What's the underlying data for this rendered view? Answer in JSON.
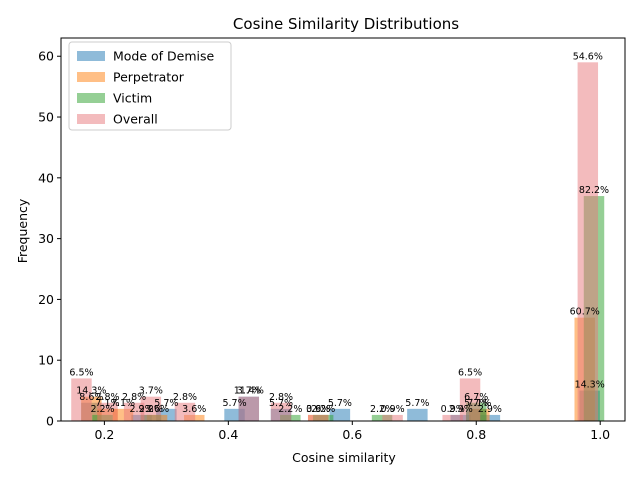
{
  "chart_data": {
    "type": "bar",
    "title": "Cosine Similarity Distributions",
    "xlabel": "Cosine similarity",
    "ylabel": "Frequency",
    "xlim": [
      0.13,
      1.04
    ],
    "ylim": [
      0,
      63
    ],
    "xticks": [
      0.2,
      0.4,
      0.6,
      0.8,
      1.0
    ],
    "xtick_labels": [
      "0.2",
      "0.4",
      "0.6",
      "0.8",
      "1.0"
    ],
    "yticks": [
      0,
      10,
      20,
      30,
      40,
      50,
      60
    ],
    "ytick_labels": [
      "0",
      "10",
      "20",
      "30",
      "40",
      "50",
      "60"
    ],
    "grid": false,
    "legend_position": "top-left",
    "series": [
      {
        "name": "Mode of Demise",
        "color": "#1f77b4",
        "alpha": 0.5,
        "points": [
          {
            "x": 0.179,
            "w": 0.033,
            "y": 3,
            "label": "8.6%"
          },
          {
            "x": 0.26,
            "w": 0.033,
            "y": 1,
            "label": "2.9%"
          },
          {
            "x": 0.3,
            "w": 0.033,
            "y": 2,
            "label": "5.7%"
          },
          {
            "x": 0.41,
            "w": 0.033,
            "y": 2,
            "label": "5.7%"
          },
          {
            "x": 0.433,
            "w": 0.033,
            "y": 4,
            "label": "11.4%"
          },
          {
            "x": 0.485,
            "w": 0.033,
            "y": 2,
            "label": "5.7%"
          },
          {
            "x": 0.58,
            "w": 0.033,
            "y": 2,
            "label": "5.7%"
          },
          {
            "x": 0.705,
            "w": 0.033,
            "y": 2,
            "label": "5.7%"
          },
          {
            "x": 0.775,
            "w": 0.033,
            "y": 1,
            "label": "2.9%"
          },
          {
            "x": 0.8,
            "w": 0.033,
            "y": 2,
            "label": "5.7%"
          },
          {
            "x": 0.822,
            "w": 0.033,
            "y": 1,
            "label": "2.9%"
          },
          {
            "x": 0.983,
            "w": 0.033,
            "y": 5,
            "label": "14.3%"
          }
        ]
      },
      {
        "name": "Perpetrator",
        "color": "#ff7f0e",
        "alpha": 0.5,
        "points": [
          {
            "x": 0.179,
            "w": 0.033,
            "y": 4,
            "label": "14.3%"
          },
          {
            "x": 0.205,
            "w": 0.033,
            "y": 2,
            "label": "7.1%"
          },
          {
            "x": 0.23,
            "w": 0.033,
            "y": 2,
            "label": "7.1%"
          },
          {
            "x": 0.285,
            "w": 0.033,
            "y": 1,
            "label": "3.6%"
          },
          {
            "x": 0.345,
            "w": 0.033,
            "y": 1,
            "label": "3.6%"
          },
          {
            "x": 0.545,
            "w": 0.033,
            "y": 1,
            "label": "3.6%"
          },
          {
            "x": 0.805,
            "w": 0.033,
            "y": 2,
            "label": "7.1%"
          },
          {
            "x": 0.975,
            "w": 0.033,
            "y": 17,
            "label": "60.7%"
          }
        ]
      },
      {
        "name": "Victim",
        "color": "#2ca02c",
        "alpha": 0.5,
        "points": [
          {
            "x": 0.197,
            "w": 0.033,
            "y": 1,
            "label": "2.2%"
          },
          {
            "x": 0.275,
            "w": 0.033,
            "y": 1,
            "label": "2.2%"
          },
          {
            "x": 0.5,
            "w": 0.033,
            "y": 1,
            "label": "2.2%"
          },
          {
            "x": 0.553,
            "w": 0.033,
            "y": 1,
            "label": "2.2%"
          },
          {
            "x": 0.648,
            "w": 0.033,
            "y": 1,
            "label": "2.2%"
          },
          {
            "x": 0.8,
            "w": 0.033,
            "y": 3,
            "label": "6.7%"
          },
          {
            "x": 0.99,
            "w": 0.033,
            "y": 37,
            "label": "82.2%"
          }
        ]
      },
      {
        "name": "Overall",
        "color": "#e8787c",
        "alpha": 0.5,
        "points": [
          {
            "x": 0.163,
            "w": 0.033,
            "y": 7,
            "label": "6.5%"
          },
          {
            "x": 0.205,
            "w": 0.033,
            "y": 3,
            "label": "2.8%"
          },
          {
            "x": 0.248,
            "w": 0.033,
            "y": 3,
            "label": "2.8%"
          },
          {
            "x": 0.275,
            "w": 0.033,
            "y": 4,
            "label": "3.7%"
          },
          {
            "x": 0.33,
            "w": 0.033,
            "y": 3,
            "label": "2.8%"
          },
          {
            "x": 0.433,
            "w": 0.033,
            "y": 4,
            "label": "3.7%"
          },
          {
            "x": 0.485,
            "w": 0.033,
            "y": 3,
            "label": "2.8%"
          },
          {
            "x": 0.545,
            "w": 0.033,
            "y": 1,
            "label": "0.9%"
          },
          {
            "x": 0.665,
            "w": 0.033,
            "y": 1,
            "label": "0.9%"
          },
          {
            "x": 0.762,
            "w": 0.033,
            "y": 1,
            "label": "0.9%"
          },
          {
            "x": 0.79,
            "w": 0.033,
            "y": 7,
            "label": "6.5%"
          },
          {
            "x": 0.98,
            "w": 0.033,
            "y": 59,
            "label": "54.6%"
          }
        ]
      }
    ]
  }
}
